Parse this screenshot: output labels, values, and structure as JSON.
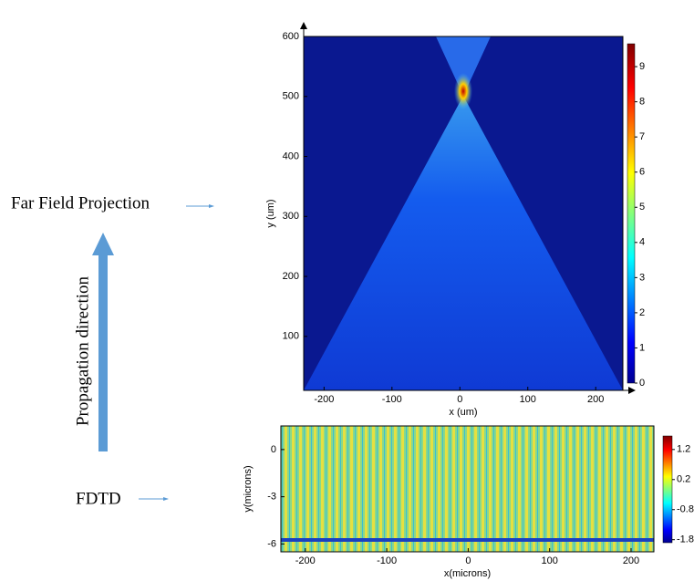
{
  "labels": {
    "far_field": "Far Field Projection",
    "fdtd": "FDTD",
    "propagation": "Propagation direction"
  },
  "chart_data": [
    {
      "type": "heatmap",
      "xlabel": "x (um)",
      "ylabel": "y (um)",
      "xlim": [
        -230,
        240
      ],
      "xticks": [
        -200,
        -100,
        0,
        100,
        200
      ],
      "ylim": [
        10,
        600
      ],
      "yticks": [
        100,
        200,
        300,
        400,
        500,
        600
      ],
      "clim": [
        0,
        9.65
      ],
      "cticks": [
        0,
        1,
        2,
        3,
        4,
        5,
        6,
        7,
        8,
        9
      ]
    },
    {
      "type": "heatmap",
      "xlabel": "x(microns)",
      "ylabel": "y(microns)",
      "xlim": [
        -230,
        228
      ],
      "xticks": [
        -200,
        -100,
        0,
        100,
        200
      ],
      "ylim": [
        -6.5,
        1.5
      ],
      "yticks": [
        -6,
        -3,
        0
      ],
      "clim": [
        -1.9,
        1.65
      ],
      "cticks": [
        -1.8,
        -0.8,
        0.2,
        1.2
      ]
    }
  ]
}
